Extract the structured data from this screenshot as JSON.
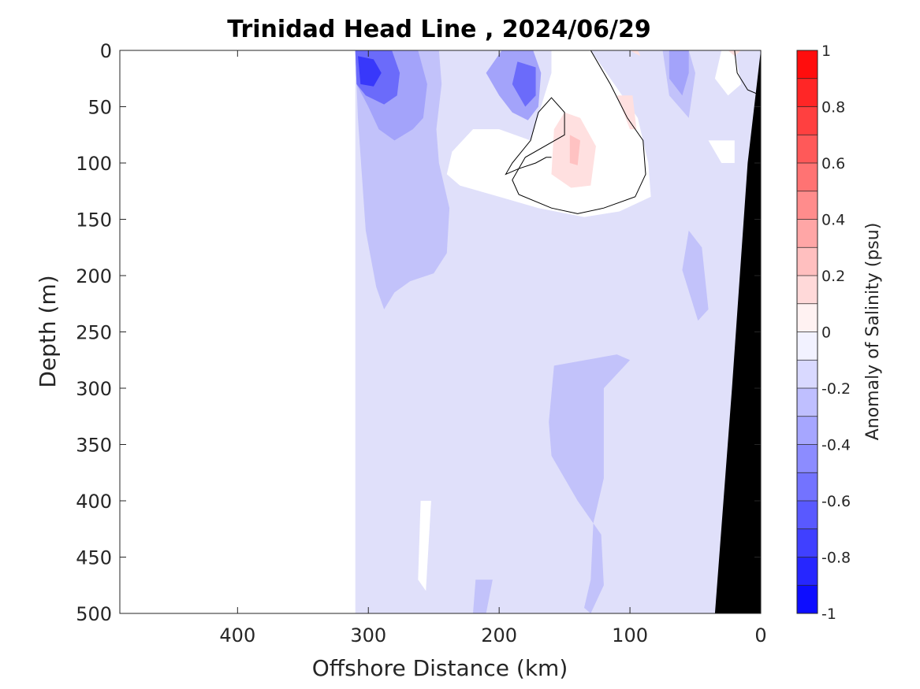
{
  "chart_data": {
    "type": "heatmap",
    "title": "Trinidad Head Line , 2024/06/29",
    "xlabel": "Offshore Distance (km)",
    "ylabel": "Depth (m)",
    "xlim": [
      490,
      0
    ],
    "ylim": [
      0,
      500
    ],
    "x_ticks": [
      400,
      300,
      200,
      100,
      0
    ],
    "y_ticks": [
      0,
      50,
      100,
      150,
      200,
      250,
      300,
      350,
      400,
      450,
      500
    ],
    "colorbar": {
      "label": "Anomaly of Salinity (psu)",
      "range": [
        -1,
        1
      ],
      "step": 0.1,
      "ticks": [
        1,
        0.8,
        0.6,
        0.4,
        0.2,
        0,
        -0.2,
        -0.4,
        -0.6,
        -0.8,
        -1
      ]
    },
    "zero_contour": true,
    "data_extent_km": [
      310,
      0
    ],
    "contour_levels": [
      {
        "level": -0.1,
        "color": "#e0e0fa",
        "regions": [
          [
            [
              310,
              0
            ],
            [
              310,
              500
            ],
            [
              0,
              500
            ],
            [
              0,
              0
            ]
          ]
        ]
      },
      {
        "level": -0.2,
        "color": "#c2c2fa",
        "regions": [
          [
            [
              310,
              0
            ],
            [
              308,
              60
            ],
            [
              302,
              160
            ],
            [
              294,
              210
            ],
            [
              288,
              230
            ],
            [
              280,
              215
            ],
            [
              268,
              205
            ],
            [
              250,
              198
            ],
            [
              240,
              180
            ],
            [
              238,
              140
            ],
            [
              246,
              100
            ],
            [
              248,
              70
            ],
            [
              244,
              30
            ],
            [
              246,
              0
            ]
          ],
          [
            [
              158,
              280
            ],
            [
              110,
              270
            ],
            [
              100,
              275
            ],
            [
              120,
              300
            ],
            [
              120,
              380
            ],
            [
              128,
              420
            ],
            [
              130,
              470
            ],
            [
              135,
              495
            ],
            [
              130,
              500
            ],
            [
              120,
              475
            ],
            [
              122,
              430
            ],
            [
              140,
              400
            ],
            [
              160,
              360
            ],
            [
              162,
              330
            ]
          ],
          [
            [
              55,
              160
            ],
            [
              45,
              175
            ],
            [
              40,
              230
            ],
            [
              48,
              240
            ],
            [
              60,
              195
            ]
          ],
          [
            [
              75,
              0
            ],
            [
              70,
              40
            ],
            [
              55,
              60
            ],
            [
              50,
              20
            ],
            [
              55,
              0
            ]
          ],
          [
            [
              210,
              500
            ],
            [
              205,
              470
            ],
            [
              218,
              470
            ],
            [
              220,
              500
            ]
          ]
        ]
      },
      {
        "level": -0.4,
        "color": "#a3a3fa",
        "regions": [
          [
            [
              310,
              0
            ],
            [
              309,
              30
            ],
            [
              300,
              50
            ],
            [
              292,
              70
            ],
            [
              280,
              80
            ],
            [
              266,
              70
            ],
            [
              258,
              60
            ],
            [
              255,
              30
            ],
            [
              262,
              0
            ]
          ],
          [
            [
              198,
              0
            ],
            [
              210,
              20
            ],
            [
              200,
              40
            ],
            [
              190,
              55
            ],
            [
              178,
              62
            ],
            [
              170,
              50
            ],
            [
              168,
              20
            ],
            [
              174,
              0
            ]
          ],
          [
            [
              70,
              0
            ],
            [
              70,
              25
            ],
            [
              60,
              40
            ],
            [
              55,
              20
            ],
            [
              55,
              0
            ]
          ]
        ]
      },
      {
        "level": -0.6,
        "color": "#6b6bfa",
        "regions": [
          [
            [
              310,
              0
            ],
            [
              309,
              30
            ],
            [
              302,
              40
            ],
            [
              288,
              48
            ],
            [
              278,
              40
            ],
            [
              276,
              20
            ],
            [
              282,
              0
            ]
          ],
          [
            [
              186,
              10
            ],
            [
              190,
              30
            ],
            [
              180,
              50
            ],
            [
              172,
              40
            ],
            [
              172,
              15
            ]
          ]
        ]
      },
      {
        "level": -0.8,
        "color": "#3838fa",
        "regions": [
          [
            [
              308,
              5
            ],
            [
              306,
              30
            ],
            [
              296,
              32
            ],
            [
              290,
              20
            ],
            [
              296,
              8
            ]
          ]
        ]
      },
      {
        "level": 0.0,
        "color": "#ffffff",
        "regions": [
          [
            [
              260,
              400
            ],
            [
              262,
              470
            ],
            [
              256,
              480
            ],
            [
              252,
              400
            ]
          ],
          [
            [
              160,
              0
            ],
            [
              130,
              0
            ],
            [
              112,
              30
            ],
            [
              94,
              60
            ],
            [
              86,
              100
            ],
            [
              84,
              130
            ],
            [
              108,
              143
            ],
            [
              135,
              148
            ],
            [
              170,
              140
            ],
            [
              200,
              130
            ],
            [
              230,
              120
            ],
            [
              240,
              110
            ],
            [
              236,
              90
            ],
            [
              220,
              70
            ],
            [
              200,
              70
            ],
            [
              176,
              80
            ],
            [
              160,
              20
            ]
          ],
          [
            [
              20,
              80
            ],
            [
              40,
              80
            ],
            [
              35,
              90
            ],
            [
              30,
              100
            ],
            [
              20,
              100
            ]
          ],
          [
            [
              30,
              0
            ],
            [
              20,
              0
            ],
            [
              15,
              30
            ],
            [
              25,
              40
            ],
            [
              35,
              25
            ]
          ]
        ]
      },
      {
        "level": 0.1,
        "color": "#ffe0e0",
        "regions": [
          [
            [
              158,
              70
            ],
            [
              160,
              110
            ],
            [
              145,
              122
            ],
            [
              130,
              120
            ],
            [
              126,
              85
            ],
            [
              138,
              60
            ],
            [
              150,
              55
            ]
          ],
          [
            [
              110,
              40
            ],
            [
              100,
              70
            ],
            [
              95,
              70
            ],
            [
              98,
              40
            ]
          ],
          [
            [
              100,
              0
            ],
            [
              92,
              5
            ],
            [
              94,
              0
            ]
          ],
          [
            [
              25,
              0
            ],
            [
              20,
              5
            ],
            [
              15,
              0
            ]
          ]
        ]
      },
      {
        "level": 0.2,
        "color": "#ffc2c2",
        "regions": [
          [
            [
              146,
              75
            ],
            [
              146,
              100
            ],
            [
              140,
              102
            ],
            [
              138,
              80
            ]
          ]
        ]
      }
    ],
    "zero_contour_lines": [
      [
        [
          130,
          0
        ],
        [
          115,
          30
        ],
        [
          102,
          60
        ],
        [
          90,
          80
        ],
        [
          88,
          110
        ],
        [
          96,
          130
        ],
        [
          120,
          140
        ],
        [
          140,
          145
        ],
        [
          160,
          140
        ],
        [
          185,
          128
        ],
        [
          190,
          115
        ],
        [
          180,
          95
        ],
        [
          150,
          75
        ],
        [
          150,
          55
        ],
        [
          160,
          42
        ],
        [
          170,
          55
        ],
        [
          176,
          80
        ],
        [
          190,
          100
        ],
        [
          195,
          110
        ],
        [
          185,
          105
        ],
        [
          172,
          100
        ],
        [
          164,
          95
        ],
        [
          160,
          95
        ]
      ],
      [
        [
          20,
          0
        ],
        [
          18,
          20
        ],
        [
          10,
          35
        ],
        [
          0,
          40
        ]
      ]
    ],
    "seafloor": [
      [
        0,
        0
      ],
      [
        0,
        500
      ],
      [
        35,
        500
      ],
      [
        22,
        300
      ],
      [
        10,
        100
      ],
      [
        0,
        0
      ]
    ]
  }
}
